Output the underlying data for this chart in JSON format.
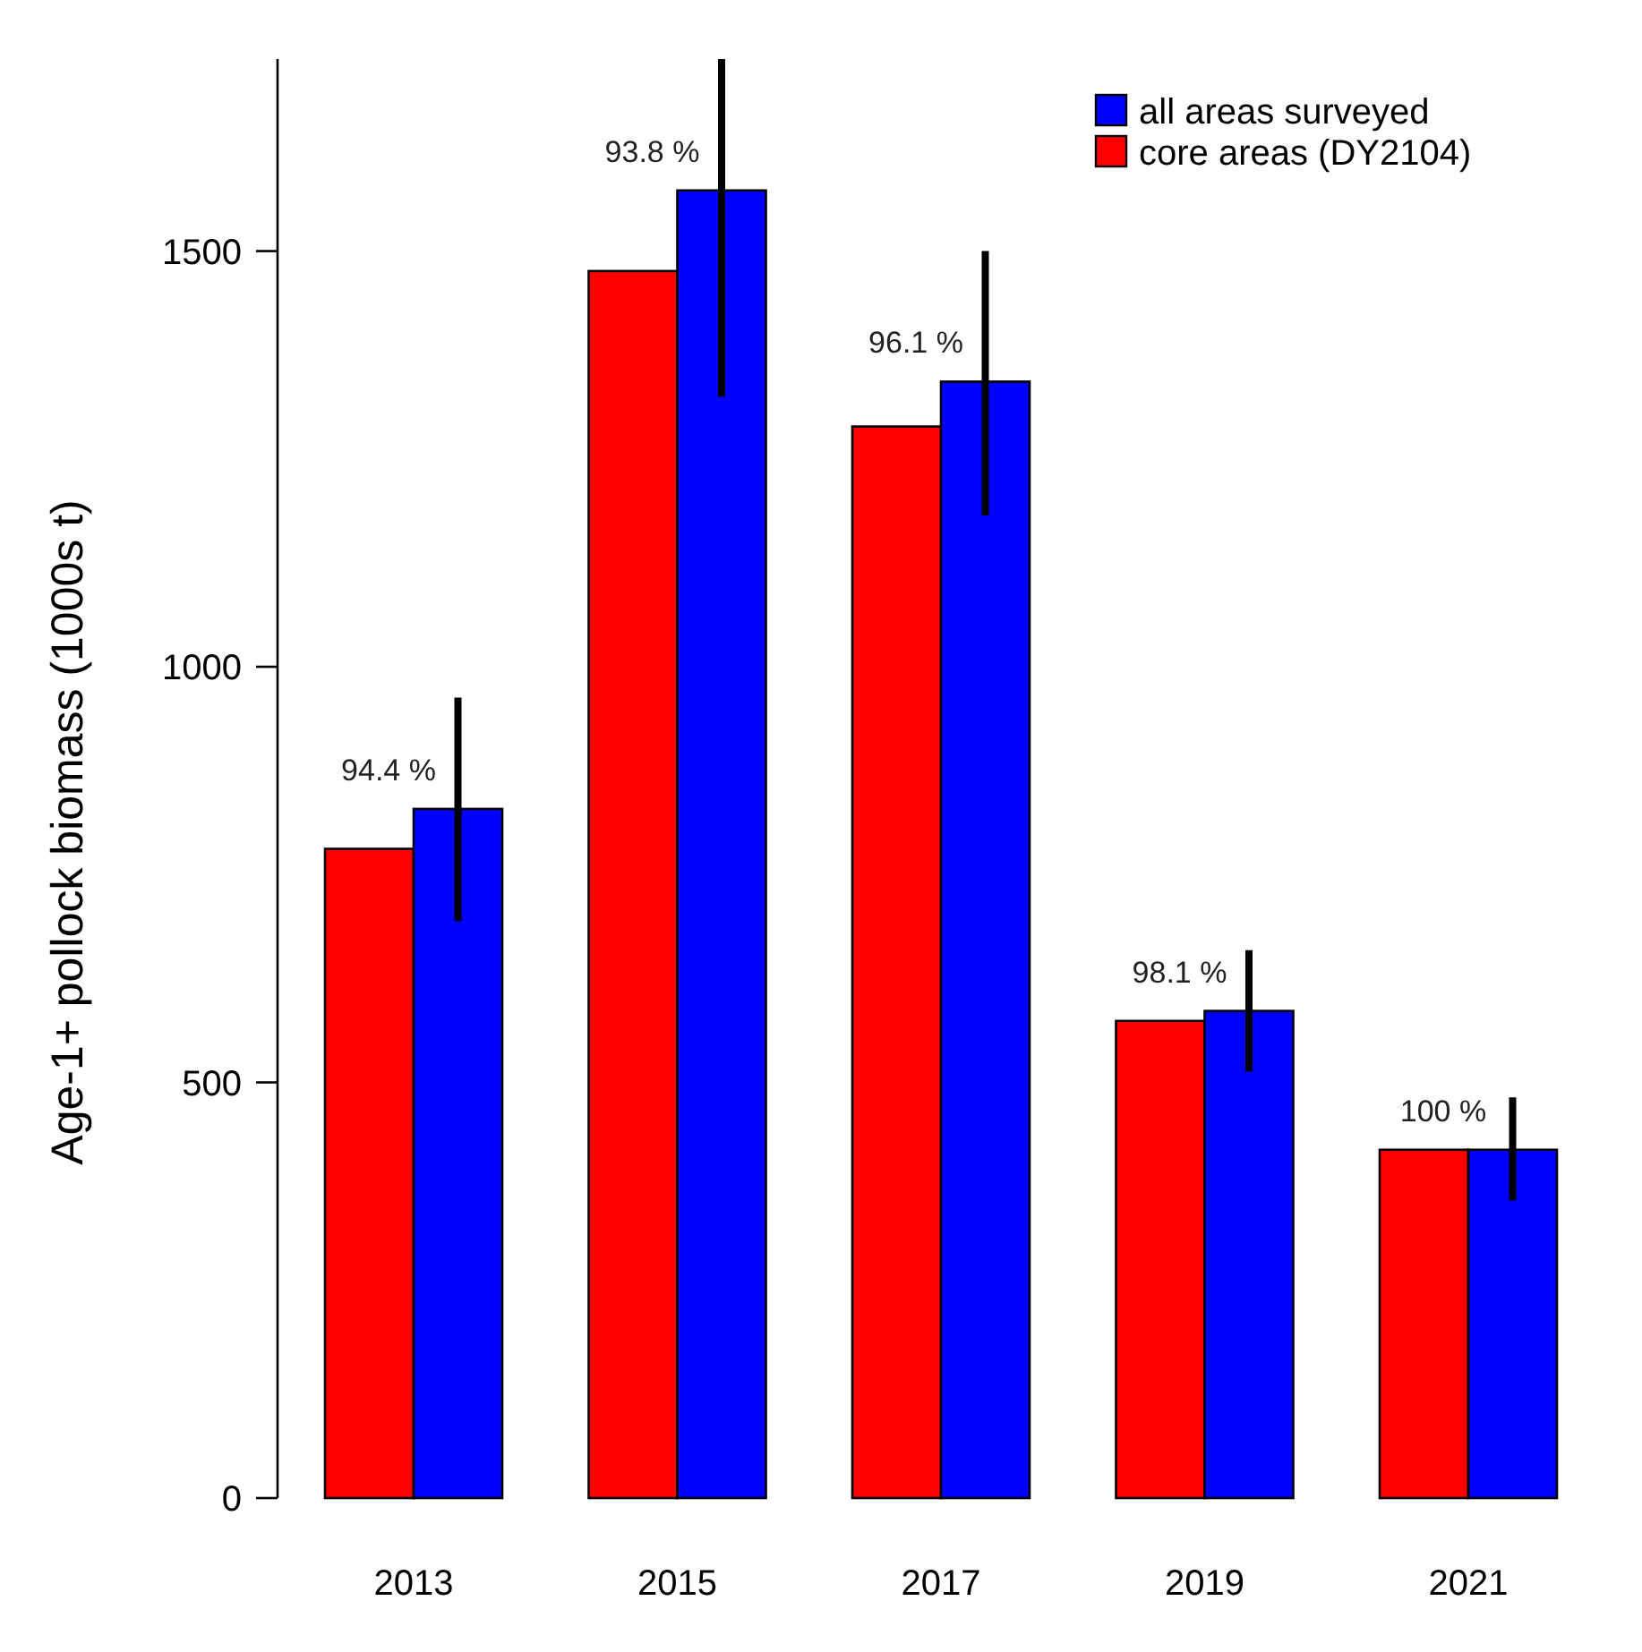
{
  "chart_data": {
    "type": "bar",
    "ylabel": "Age-1+ pollock biomass (1000s t)",
    "categories": [
      "2013",
      "2015",
      "2017",
      "2019",
      "2021"
    ],
    "series": [
      {
        "name": "core areas (DY2104)",
        "color": "#ff0000",
        "values": [
          781,
          1476,
          1289,
          574,
          419
        ]
      },
      {
        "name": "all areas surveyed",
        "color": "#0000ff",
        "values": [
          829,
          1573,
          1343,
          586,
          419
        ],
        "errors": [
          [
            694,
            963
          ],
          [
            1325,
            1731
          ],
          [
            1182,
            1500
          ],
          [
            513,
            659
          ],
          [
            358,
            482
          ]
        ]
      }
    ],
    "ylim": [
      0,
      1731
    ],
    "yticks": [
      0,
      500,
      1000,
      1500
    ],
    "legend": "top right",
    "annotations": [
      "94.4 %",
      "93.8 %",
      "96.1 %",
      "98.1 %",
      "100 %"
    ]
  }
}
